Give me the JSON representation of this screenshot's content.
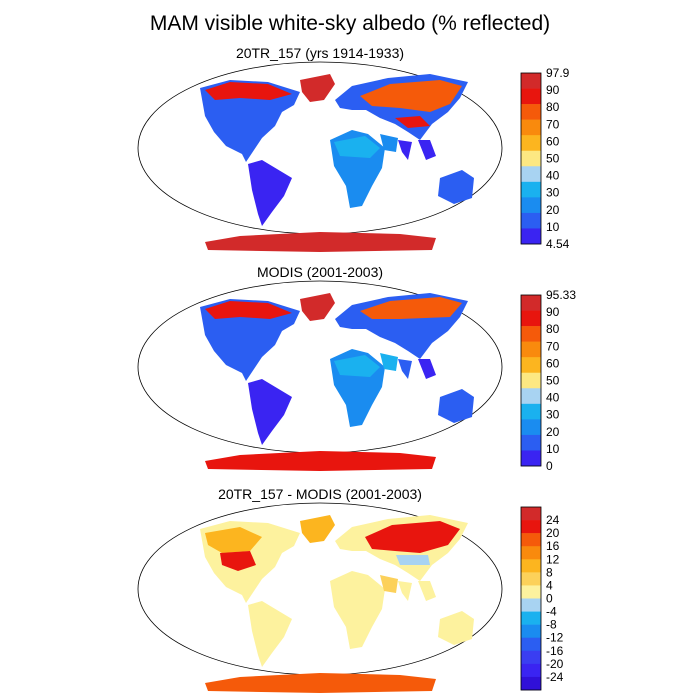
{
  "title": "MAM visible white-sky albedo (% reflected)",
  "panels": [
    {
      "id": "model",
      "title": "20TR_157 (yrs 1914-1933)",
      "colorbar": {
        "labels": [
          "97.9",
          "90",
          "80",
          "70",
          "60",
          "50",
          "40",
          "30",
          "20",
          "10",
          "4.54"
        ],
        "colors": [
          "#d22a2a",
          "#e8150e",
          "#f55a0a",
          "#f98a0d",
          "#fcb51f",
          "#fde882",
          "#a8d3f2",
          "#1ab1ef",
          "#1a8cf0",
          "#2b5ef2",
          "#3a24f2"
        ]
      }
    },
    {
      "id": "modis",
      "title": "MODIS (2001-2003)",
      "colorbar": {
        "labels": [
          "95.33",
          "90",
          "80",
          "70",
          "60",
          "50",
          "40",
          "30",
          "20",
          "10",
          "0"
        ],
        "colors": [
          "#d22a2a",
          "#e8150e",
          "#f55a0a",
          "#f98a0d",
          "#fcb51f",
          "#fde882",
          "#a8d3f2",
          "#1ab1ef",
          "#1a8cf0",
          "#2b5ef2",
          "#3a24f2"
        ]
      }
    },
    {
      "id": "diff",
      "title": "20TR_157 - MODIS (2001-2003)",
      "colorbar": {
        "labels": [
          "24",
          "20",
          "16",
          "12",
          "8",
          "4",
          "0",
          "-4",
          "-8",
          "-12",
          "-16",
          "-20",
          "-24"
        ],
        "colors": [
          "#d22a2a",
          "#e8150e",
          "#f55a0a",
          "#f98a0d",
          "#fcb51f",
          "#fcd15a",
          "#fdf29e",
          "#a8d3f2",
          "#1ab1ef",
          "#1a8cf0",
          "#2b5ef2",
          "#3a3ef2",
          "#3a24f2",
          "#3010d8"
        ]
      }
    }
  ]
}
